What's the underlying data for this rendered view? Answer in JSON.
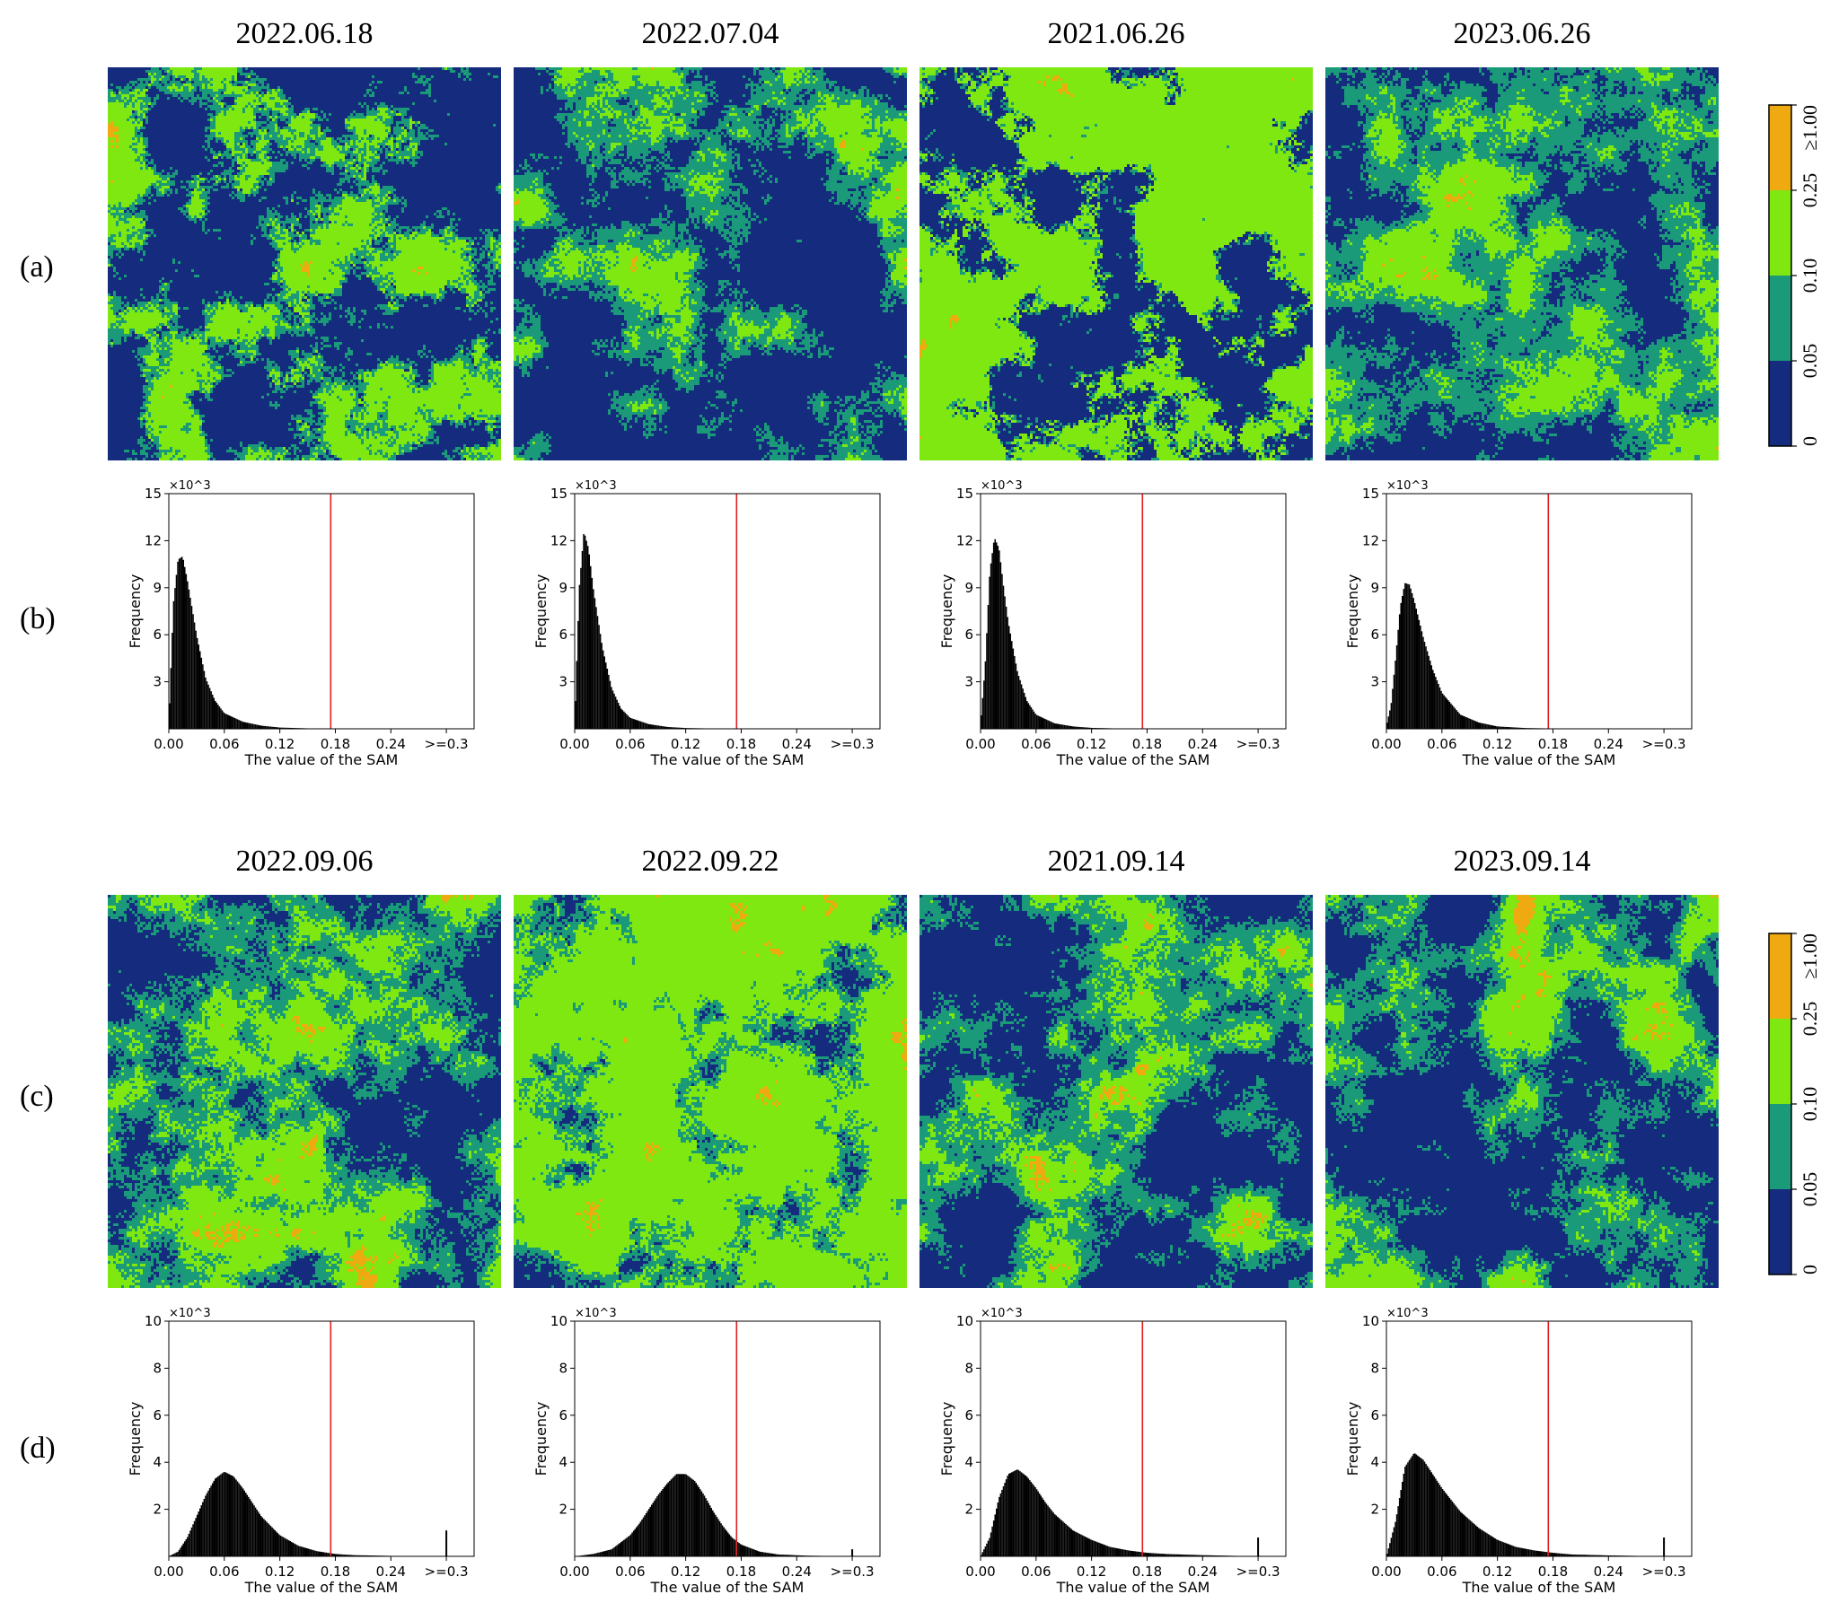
{
  "row_labels": [
    "(a)",
    "(b)",
    "(c)",
    "(d)"
  ],
  "groups": [
    {
      "dates": [
        "2022.06.18",
        "2022.07.04",
        "2021.06.26",
        "2023.06.26"
      ],
      "map_mix": [
        {
          "dark": 0.5,
          "teal": 0.22,
          "green": 0.27,
          "orange": 0.002
        },
        {
          "dark": 0.56,
          "teal": 0.3,
          "green": 0.13,
          "orange": 0.001
        },
        {
          "dark": 0.34,
          "teal": 0.08,
          "green": 0.57,
          "orange": 0.002
        },
        {
          "dark": 0.3,
          "teal": 0.46,
          "green": 0.23,
          "orange": 0.002
        }
      ]
    },
    {
      "dates": [
        "2022.09.06",
        "2022.09.22",
        "2021.09.14",
        "2023.09.14"
      ],
      "map_mix": [
        {
          "dark": 0.28,
          "teal": 0.4,
          "green": 0.3,
          "orange": 0.012
        },
        {
          "dark": 0.05,
          "teal": 0.18,
          "green": 0.76,
          "orange": 0.008
        },
        {
          "dark": 0.44,
          "teal": 0.36,
          "green": 0.19,
          "orange": 0.008
        },
        {
          "dark": 0.48,
          "teal": 0.33,
          "green": 0.18,
          "orange": 0.008
        }
      ]
    }
  ],
  "colorbar": {
    "tick_labels": [
      "0",
      "0.05",
      "0.10",
      "0.25",
      "≥1.00"
    ],
    "colors": [
      "#142b7e",
      "#1a9a79",
      "#7ee810",
      "#efaa12"
    ]
  },
  "colors": {
    "dark": "#142b7e",
    "teal": "#1a9a79",
    "green": "#7ee810",
    "orange": "#efaa12",
    "threshold": "#e02020",
    "bars": "#000000"
  },
  "chart_data": [
    {
      "type": "bar",
      "panel": "(b)",
      "title": "2022.06.18",
      "xlabel": "The value of the SAM",
      "ylabel": "Frequency",
      "y_multiplier": "×10^3",
      "xlim": [
        0,
        0.33
      ],
      "ylim": [
        0,
        15
      ],
      "xtick_labels": [
        "0.00",
        "0.06",
        "0.12",
        "0.18",
        "0.24",
        ">=0.3"
      ],
      "ytick_labels": [
        "3",
        "6",
        "9",
        "12",
        "15"
      ],
      "threshold_x": 0.175,
      "distribution": {
        "x": [
          0.0,
          0.005,
          0.01,
          0.015,
          0.02,
          0.03,
          0.04,
          0.05,
          0.06,
          0.08,
          0.1,
          0.12,
          0.15,
          0.18,
          0.3
        ],
        "freq": [
          0.5,
          8.0,
          10.8,
          11.0,
          9.5,
          6.0,
          3.2,
          1.8,
          1.0,
          0.45,
          0.2,
          0.08,
          0.03,
          0.01,
          0.0
        ],
        "overflow": 0.0
      }
    },
    {
      "type": "bar",
      "panel": "(b)",
      "title": "2022.07.04",
      "xlabel": "The value of the SAM",
      "ylabel": "Frequency",
      "y_multiplier": "×10^3",
      "xlim": [
        0,
        0.33
      ],
      "ylim": [
        0,
        15
      ],
      "xtick_labels": [
        "0.00",
        "0.06",
        "0.12",
        "0.18",
        "0.24",
        ">=0.3"
      ],
      "ytick_labels": [
        "3",
        "6",
        "9",
        "12",
        "15"
      ],
      "threshold_x": 0.175,
      "distribution": {
        "x": [
          0.0,
          0.005,
          0.01,
          0.015,
          0.02,
          0.03,
          0.04,
          0.05,
          0.06,
          0.08,
          0.1,
          0.12,
          0.15,
          0.18,
          0.3
        ],
        "freq": [
          0.5,
          9.0,
          12.6,
          11.5,
          9.0,
          5.2,
          2.6,
          1.3,
          0.7,
          0.3,
          0.12,
          0.05,
          0.02,
          0.01,
          0.0
        ],
        "overflow": 0.0
      }
    },
    {
      "type": "bar",
      "panel": "(b)",
      "title": "2021.06.26",
      "xlabel": "The value of the SAM",
      "ylabel": "Frequency",
      "y_multiplier": "×10^3",
      "xlim": [
        0,
        0.33
      ],
      "ylim": [
        0,
        15
      ],
      "xtick_labels": [
        "0.00",
        "0.06",
        "0.12",
        "0.18",
        "0.24",
        ">=0.3"
      ],
      "ytick_labels": [
        "3",
        "6",
        "9",
        "12",
        "15"
      ],
      "threshold_x": 0.175,
      "distribution": {
        "x": [
          0.0,
          0.005,
          0.01,
          0.015,
          0.02,
          0.025,
          0.03,
          0.04,
          0.05,
          0.06,
          0.08,
          0.1,
          0.12,
          0.15,
          0.18,
          0.3
        ],
        "freq": [
          0.3,
          4.0,
          10.0,
          12.2,
          11.5,
          9.0,
          6.8,
          3.6,
          1.8,
          0.9,
          0.35,
          0.15,
          0.06,
          0.02,
          0.01,
          0.0
        ],
        "overflow": 0.0
      }
    },
    {
      "type": "bar",
      "panel": "(b)",
      "title": "2023.06.26",
      "xlabel": "The value of the SAM",
      "ylabel": "Frequency",
      "y_multiplier": "×10^3",
      "xlim": [
        0,
        0.33
      ],
      "ylim": [
        0,
        15
      ],
      "xtick_labels": [
        "0.00",
        "0.06",
        "0.12",
        "0.18",
        "0.24",
        ">=0.3"
      ],
      "ytick_labels": [
        "3",
        "6",
        "9",
        "12",
        "15"
      ],
      "threshold_x": 0.175,
      "distribution": {
        "x": [
          0.0,
          0.005,
          0.01,
          0.015,
          0.02,
          0.025,
          0.03,
          0.04,
          0.05,
          0.06,
          0.08,
          0.1,
          0.12,
          0.15,
          0.18,
          0.3
        ],
        "freq": [
          0.2,
          1.5,
          4.5,
          7.8,
          9.3,
          9.2,
          8.2,
          5.8,
          3.8,
          2.3,
          0.9,
          0.4,
          0.15,
          0.05,
          0.02,
          0.0
        ],
        "overflow": 0.0
      }
    },
    {
      "type": "bar",
      "panel": "(d)",
      "title": "2022.09.06",
      "xlabel": "The value of the SAM",
      "ylabel": "Frequency",
      "y_multiplier": "×10^3",
      "xlim": [
        0,
        0.33
      ],
      "ylim": [
        0,
        10
      ],
      "xtick_labels": [
        "0.00",
        "0.06",
        "0.12",
        "0.18",
        "0.24",
        ">=0.3"
      ],
      "ytick_labels": [
        "2",
        "4",
        "6",
        "8",
        "10"
      ],
      "threshold_x": 0.175,
      "distribution": {
        "x": [
          0.0,
          0.01,
          0.02,
          0.03,
          0.04,
          0.05,
          0.06,
          0.07,
          0.08,
          0.09,
          0.1,
          0.12,
          0.14,
          0.16,
          0.18,
          0.2,
          0.24,
          0.3
        ],
        "freq": [
          0.0,
          0.2,
          0.8,
          1.7,
          2.6,
          3.3,
          3.6,
          3.4,
          2.9,
          2.3,
          1.7,
          0.9,
          0.45,
          0.22,
          0.1,
          0.05,
          0.02,
          0.0
        ],
        "overflow": 1.1
      }
    },
    {
      "type": "bar",
      "panel": "(d)",
      "title": "2022.09.22",
      "xlabel": "The value of the SAM",
      "ylabel": "Frequency",
      "y_multiplier": "×10^3",
      "xlim": [
        0,
        0.33
      ],
      "ylim": [
        0,
        10
      ],
      "xtick_labels": [
        "0.00",
        "0.06",
        "0.12",
        "0.18",
        "0.24",
        ">=0.3"
      ],
      "ytick_labels": [
        "2",
        "4",
        "6",
        "8",
        "10"
      ],
      "threshold_x": 0.175,
      "distribution": {
        "x": [
          0.0,
          0.02,
          0.04,
          0.06,
          0.07,
          0.08,
          0.09,
          0.1,
          0.11,
          0.12,
          0.13,
          0.14,
          0.15,
          0.16,
          0.17,
          0.18,
          0.2,
          0.22,
          0.25,
          0.3
        ],
        "freq": [
          0.0,
          0.1,
          0.3,
          0.9,
          1.4,
          2.0,
          2.6,
          3.1,
          3.5,
          3.5,
          3.2,
          2.6,
          1.9,
          1.3,
          0.8,
          0.5,
          0.2,
          0.08,
          0.03,
          0.0
        ],
        "overflow": 0.3
      }
    },
    {
      "type": "bar",
      "panel": "(d)",
      "title": "2021.09.14",
      "xlabel": "The value of the SAM",
      "ylabel": "Frequency",
      "y_multiplier": "×10^3",
      "xlim": [
        0,
        0.33
      ],
      "ylim": [
        0,
        10
      ],
      "xtick_labels": [
        "0.00",
        "0.06",
        "0.12",
        "0.18",
        "0.24",
        ">=0.3"
      ],
      "ytick_labels": [
        "2",
        "4",
        "6",
        "8",
        "10"
      ],
      "threshold_x": 0.175,
      "distribution": {
        "x": [
          0.0,
          0.01,
          0.02,
          0.03,
          0.04,
          0.05,
          0.06,
          0.07,
          0.08,
          0.1,
          0.12,
          0.14,
          0.16,
          0.18,
          0.2,
          0.24,
          0.3
        ],
        "freq": [
          0.0,
          0.8,
          2.5,
          3.5,
          3.7,
          3.4,
          2.9,
          2.3,
          1.8,
          1.1,
          0.7,
          0.4,
          0.25,
          0.15,
          0.1,
          0.05,
          0.0
        ],
        "overflow": 0.8
      }
    },
    {
      "type": "bar",
      "panel": "(d)",
      "title": "2023.09.14",
      "xlabel": "The value of the SAM",
      "ylabel": "Frequency",
      "y_multiplier": "×10^3",
      "xlim": [
        0,
        0.33
      ],
      "ylim": [
        0,
        10
      ],
      "xtick_labels": [
        "0.00",
        "0.06",
        "0.12",
        "0.18",
        "0.24",
        ">=0.3"
      ],
      "ytick_labels": [
        "2",
        "4",
        "6",
        "8",
        "10"
      ],
      "threshold_x": 0.175,
      "distribution": {
        "x": [
          0.0,
          0.01,
          0.02,
          0.03,
          0.04,
          0.05,
          0.06,
          0.08,
          0.1,
          0.12,
          0.14,
          0.16,
          0.18,
          0.2,
          0.24,
          0.3
        ],
        "freq": [
          0.0,
          1.5,
          3.8,
          4.4,
          4.1,
          3.5,
          2.9,
          1.9,
          1.2,
          0.7,
          0.4,
          0.25,
          0.15,
          0.08,
          0.04,
          0.0
        ],
        "overflow": 0.8
      }
    }
  ]
}
